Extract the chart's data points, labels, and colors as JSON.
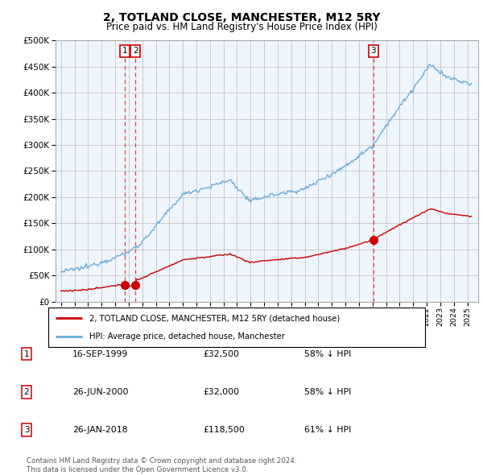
{
  "title": "2, TOTLAND CLOSE, MANCHESTER, M12 5RY",
  "subtitle": "Price paid vs. HM Land Registry's House Price Index (HPI)",
  "legend_line1": "2, TOTLAND CLOSE, MANCHESTER, M12 5RY (detached house)",
  "legend_line2": "HPI: Average price, detached house, Manchester",
  "footer1": "Contains HM Land Registry data © Crown copyright and database right 2024.",
  "footer2": "This data is licensed under the Open Government Licence v3.0.",
  "table": [
    [
      "1",
      "16-SEP-1999",
      "£32,500",
      "58% ↓ HPI"
    ],
    [
      "2",
      "26-JUN-2000",
      "£32,000",
      "58% ↓ HPI"
    ],
    [
      "3",
      "26-JAN-2018",
      "£118,500",
      "61% ↓ HPI"
    ]
  ],
  "sale_dates": [
    1999.71,
    2000.49,
    2018.07
  ],
  "sale_prices": [
    32500,
    32000,
    118500
  ],
  "sale_labels": [
    "1",
    "2",
    "3"
  ],
  "hpi_color": "#6aacdc",
  "price_color": "#cc0000",
  "vline_color": "#dd4444",
  "background_color": "#ffffff",
  "chart_bg_color": "#eef5fc",
  "grid_color": "#bbbbbb",
  "ylim": [
    0,
    500000
  ],
  "xlim_start": 1994.6,
  "xlim_end": 2025.8
}
